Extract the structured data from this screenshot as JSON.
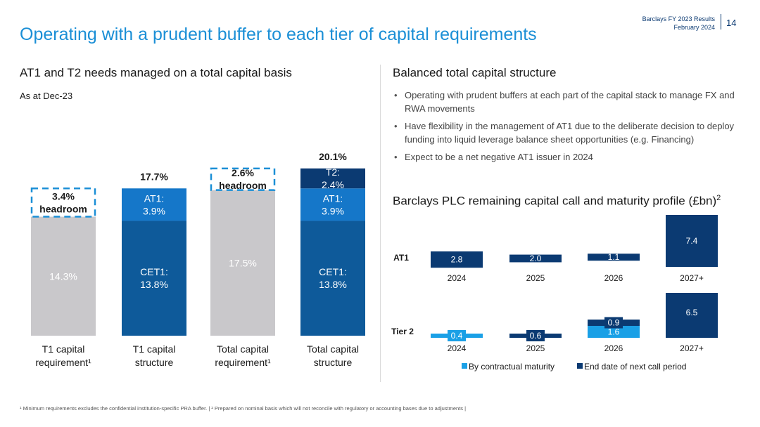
{
  "header": {
    "report": "Barclays FY 2023 Results",
    "date": "February 2024",
    "page": "14"
  },
  "title": "Operating with a prudent buffer to each tier of capital requirements",
  "left": {
    "title": "AT1 and T2 needs managed on a total capital basis",
    "subtitle": "As at Dec-23"
  },
  "right": {
    "title": "Balanced total capital structure",
    "bullets": [
      "Operating with prudent buffers at each part of the capital stack to manage FX and RWA movements",
      "Have flexibility in the management of AT1 due to the deliberate decision to deploy funding into liquid leverage balance sheet opportunities (e.g. Financing)",
      "Expect to be a net negative AT1 issuer in 2024"
    ],
    "profile_title": "Barclays PLC remaining capital call and maturity profile (£bn)",
    "profile_title_sup": "2"
  },
  "footnote": "¹ Minimum requirements excludes the confidential institution-specific PRA buffer. | ² Prepared on nominal basis which will not reconcile with regulatory or accounting bases due to adjustments |",
  "colors": {
    "grey": "#c9c8cb",
    "mid_blue": "#0e5a9a",
    "dark_blue": "#0b3a72",
    "bright_blue": "#1577c9",
    "light_blue": "#1aa0e6",
    "accent": "#1b8fd6"
  },
  "chart_data": [
    {
      "type": "bar",
      "stacked": true,
      "ylim": [
        0,
        22
      ],
      "categories": [
        "T1 capital requirement¹",
        "T1 capital structure",
        "Total capital requirement¹",
        "Total capital structure"
      ],
      "series": [
        {
          "segment": "base",
          "values": [
            14.3,
            13.8,
            17.5,
            13.8
          ],
          "labels": [
            "14.3%",
            "CET1: 13.8%",
            "17.5%",
            "CET1: 13.8%"
          ]
        },
        {
          "segment": "AT1",
          "values": [
            null,
            3.9,
            null,
            3.9
          ],
          "labels": [
            "",
            "AT1: 3.9%",
            "",
            "AT1: 3.9%"
          ]
        },
        {
          "segment": "T2",
          "values": [
            null,
            null,
            null,
            2.4
          ],
          "labels": [
            "",
            "",
            "",
            "T2: 2.4%"
          ]
        },
        {
          "segment": "headroom",
          "values": [
            3.4,
            null,
            2.6,
            null
          ],
          "labels": [
            "3.4% headroom",
            "",
            "2.6% headroom",
            ""
          ]
        }
      ],
      "totals": [
        "",
        "17.7%",
        "",
        "20.1%"
      ]
    },
    {
      "type": "bar",
      "categories": [
        "2024",
        "2025",
        "2026",
        "2027+"
      ],
      "panels": [
        {
          "name": "AT1",
          "bars": [
            {
              "category": "2024",
              "value": 2.8,
              "label": "2.8",
              "series": "End date of next call period"
            },
            {
              "category": "2025",
              "value": 2.0,
              "label": "2.0",
              "series": "End date of next call period"
            },
            {
              "category": "2026",
              "value": 1.1,
              "label": "1.1",
              "series": "End date of next call period"
            },
            {
              "category": "2027+",
              "value": 7.4,
              "label": "7.4",
              "series": "End date of next call period"
            }
          ]
        },
        {
          "name": "Tier 2",
          "bars": [
            {
              "category": "2024",
              "value": 0.4,
              "label": "0.4",
              "series": "By contractual maturity"
            },
            {
              "category": "2025",
              "value": 0.6,
              "label": "0.6",
              "series": "End date of next call period"
            },
            {
              "category": "2026",
              "value": 1.6,
              "label": "1.6",
              "series": "By contractual maturity"
            },
            {
              "category": "2026",
              "value": 0.9,
              "label": "0.9",
              "series": "End date of next call period"
            },
            {
              "category": "2027+",
              "value": 6.5,
              "label": "6.5",
              "series": "End date of next call period"
            }
          ]
        }
      ],
      "legend": [
        "By contractual maturity",
        "End date of next call period"
      ],
      "legend_position": "bottom"
    }
  ]
}
